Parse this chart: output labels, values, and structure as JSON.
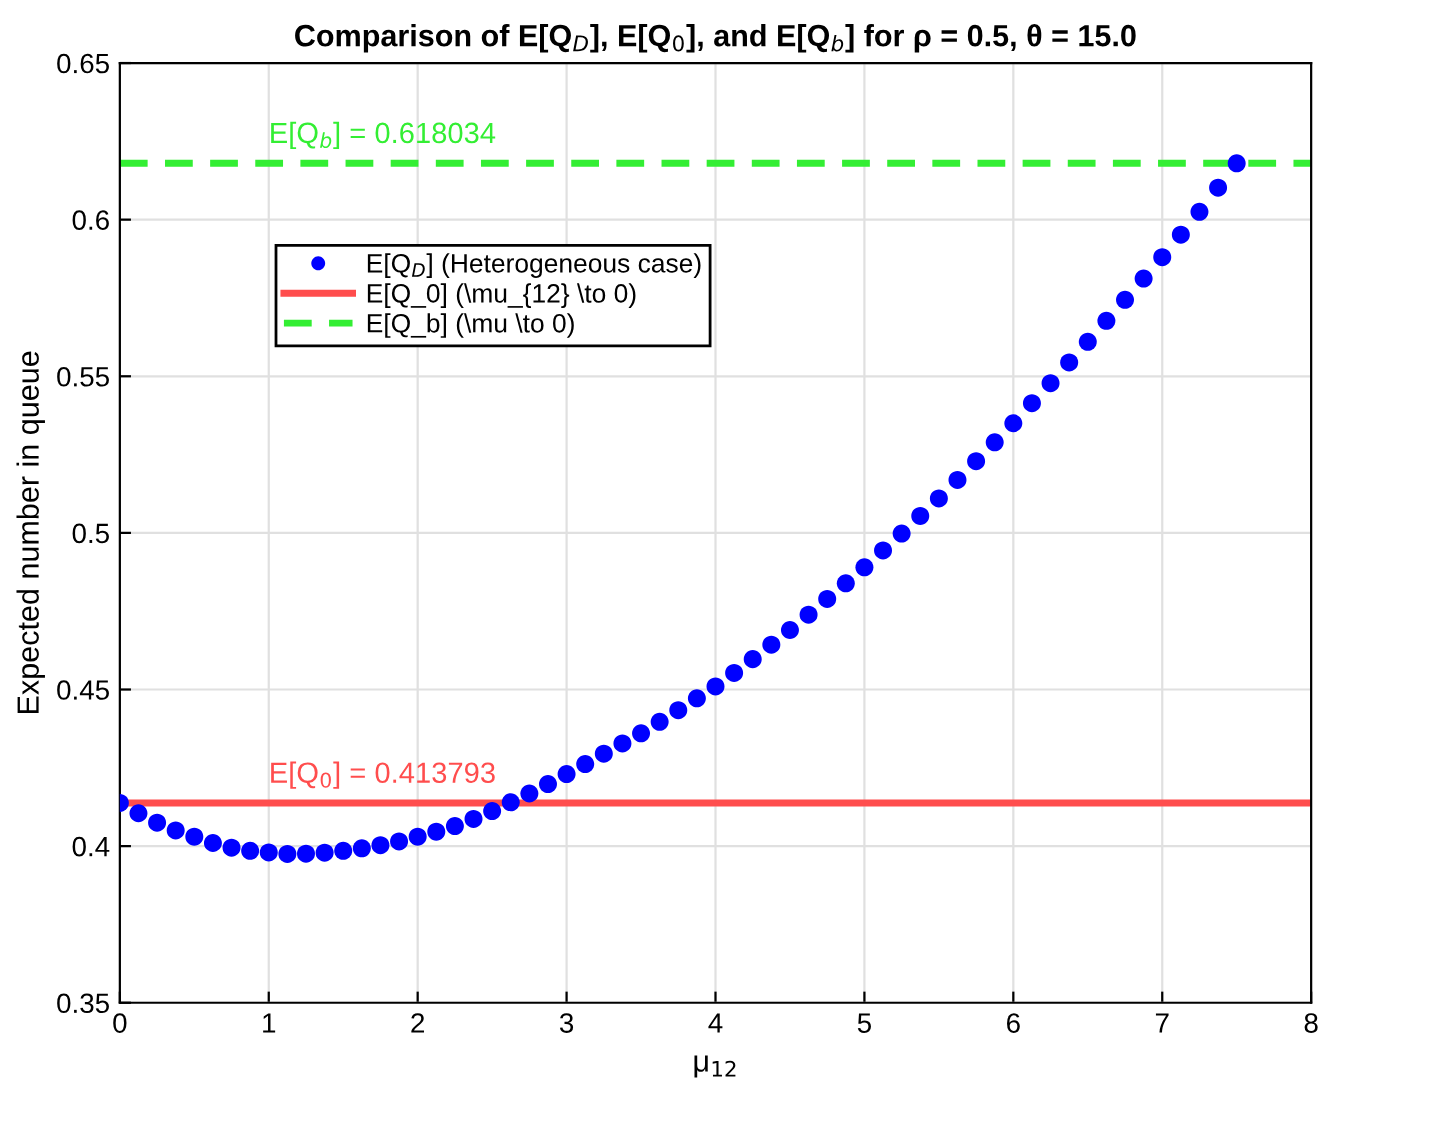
{
  "chart_data": {
    "type": "scatter",
    "title": "Comparison of E[Q$_{D}$], E[Q$_{0}$], and E[Q$_{b}$] for ρ = 0.5, θ = 15.0",
    "xlabel": "μ$_{12}$",
    "ylabel": "Expected number in queue",
    "xlim": [
      0,
      8
    ],
    "xticks": [
      0,
      1,
      2,
      3,
      4,
      5,
      6,
      7,
      8
    ],
    "ylim": [
      0.35,
      0.65
    ],
    "yticks": [
      0.35,
      0.4,
      0.45,
      0.5,
      0.55,
      0.6,
      0.65
    ],
    "grid": true,
    "legend": "top left",
    "series": [
      {
        "name": "E[Q$_{D}$] (Heterogeneous case)",
        "marker": "circle",
        "color": "#0000ff",
        "x": [
          0,
          0.125,
          0.25,
          0.375,
          0.5,
          0.625,
          0.75,
          0.875,
          1,
          1.125,
          1.25,
          1.375,
          1.5,
          1.625,
          1.75,
          1.875,
          2,
          2.125,
          2.25,
          2.375,
          2.5,
          2.625,
          2.75,
          2.875,
          3,
          3.125,
          3.25,
          3.375,
          3.5,
          3.625,
          3.75,
          3.875,
          4,
          4.125,
          4.25,
          4.375,
          4.5,
          4.625,
          4.75,
          4.875,
          5,
          5.125,
          5.25,
          5.375,
          5.5,
          5.625,
          5.75,
          5.875,
          6,
          6.125,
          6.25,
          6.375,
          6.5,
          6.625,
          6.75,
          6.875,
          7,
          7.125,
          7.25,
          7.375,
          7.5
        ],
        "values": [
          0.4138,
          0.4105,
          0.4075,
          0.405,
          0.403,
          0.401,
          0.3995,
          0.3985,
          0.398,
          0.3975,
          0.3976,
          0.3979,
          0.3985,
          0.3993,
          0.4003,
          0.4015,
          0.403,
          0.4046,
          0.4064,
          0.4087,
          0.4112,
          0.414,
          0.4168,
          0.4198,
          0.423,
          0.4262,
          0.4295,
          0.4328,
          0.436,
          0.4397,
          0.4434,
          0.4472,
          0.451,
          0.4553,
          0.4597,
          0.4643,
          0.469,
          0.4739,
          0.4789,
          0.4839,
          0.489,
          0.4944,
          0.4998,
          0.5054,
          0.511,
          0.5169,
          0.5229,
          0.5289,
          0.535,
          0.5414,
          0.5478,
          0.5544,
          0.561,
          0.5677,
          0.5744,
          0.5812,
          0.588,
          0.5952,
          0.6025,
          0.6102,
          0.618
        ]
      },
      {
        "name": "E[Q_0] (\\mu_{12} \\to 0)",
        "type": "line",
        "line_style": "solid",
        "color": "#ff4d4d",
        "x": [
          0,
          8
        ],
        "values": [
          0.413793,
          0.413793
        ]
      },
      {
        "name": "E[Q_b] (\\mu \\to 0)",
        "type": "line",
        "line_style": "dashed",
        "color": "#33ee33",
        "x": [
          0,
          8
        ],
        "values": [
          0.618034,
          0.618034
        ]
      }
    ],
    "annotations": [
      {
        "text": "E[Q$_{0}$] = 0.413793",
        "x": 1,
        "y": 0.413793
      },
      {
        "text": "E[Q$_{b}$] = 0.618034",
        "x": 1,
        "y": 0.618034
      }
    ]
  }
}
